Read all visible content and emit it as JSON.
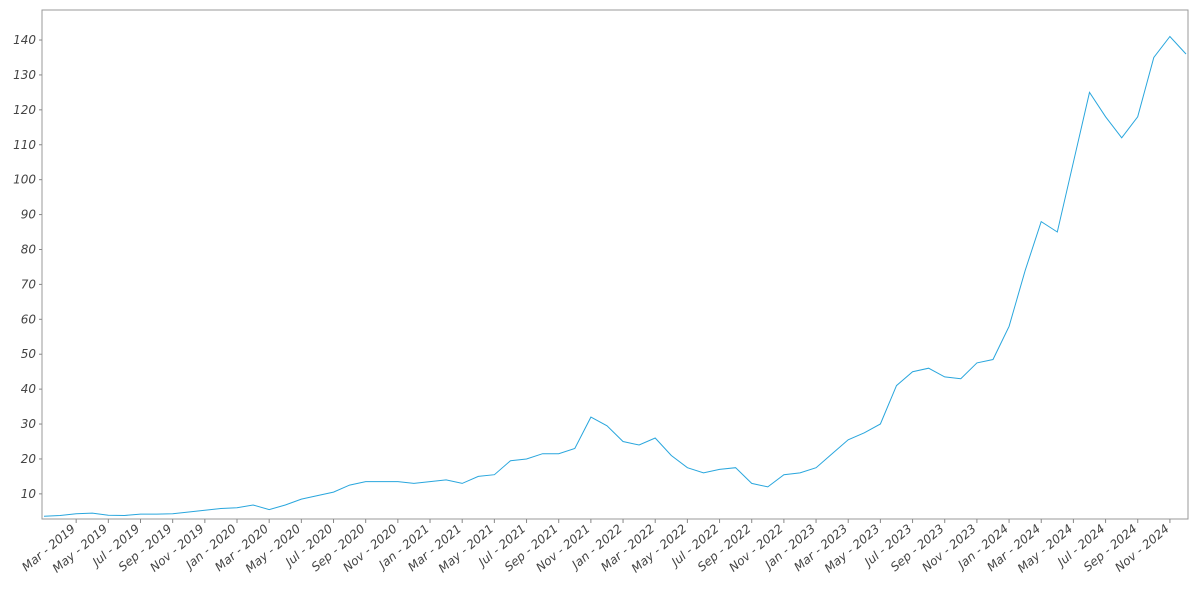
{
  "chart_data": {
    "type": "line",
    "categories": [
      null,
      null,
      "Mar - 2019",
      null,
      "May - 2019",
      null,
      "Jul - 2019",
      null,
      "Sep - 2019",
      null,
      "Nov - 2019",
      null,
      "Jan - 2020",
      null,
      "Mar - 2020",
      null,
      "May - 2020",
      null,
      "Jul - 2020",
      null,
      "Sep - 2020",
      null,
      "Nov - 2020",
      null,
      "Jan - 2021",
      null,
      "Mar - 2021",
      null,
      "May - 2021",
      null,
      "Jul - 2021",
      null,
      "Sep - 2021",
      null,
      "Nov - 2021",
      null,
      "Jan - 2022",
      null,
      "Mar - 2022",
      null,
      "May - 2022",
      null,
      "Jul - 2022",
      null,
      "Sep - 2022",
      null,
      "Nov - 2022",
      null,
      "Jan - 2023",
      null,
      "Mar - 2023",
      null,
      "May - 2023",
      null,
      "Jul - 2023",
      null,
      "Sep - 2023",
      null,
      "Nov - 2023",
      null,
      "Jan - 2024",
      null,
      "Mar - 2024",
      null,
      "May - 2024",
      null,
      "Jul - 2024",
      null,
      "Sep - 2024",
      null,
      "Nov - 2024",
      null
    ],
    "series": [
      {
        "color": "#29a6dd",
        "values": [
          3.6,
          3.8,
          4.3,
          4.5,
          3.9,
          3.8,
          4.2,
          4.2,
          4.3,
          4.8,
          5.3,
          5.8,
          6.0,
          6.8,
          5.5,
          6.8,
          8.5,
          9.5,
          10.5,
          12.5,
          13.5,
          13.5,
          13.5,
          13.0,
          13.5,
          14.0,
          13.0,
          15.0,
          15.5,
          19.5,
          20.0,
          21.5,
          21.5,
          23.0,
          32.0,
          29.5,
          25.0,
          24.0,
          26.0,
          21.0,
          17.5,
          16.0,
          17.0,
          17.5,
          13.0,
          12.0,
          15.5,
          16.0,
          17.5,
          21.5,
          25.5,
          27.5,
          30.0,
          41.0,
          45.0,
          46.0,
          43.5,
          43.0,
          47.5,
          48.5,
          58.0,
          74.0,
          88.0,
          85.0,
          105.0,
          125.0,
          118.0,
          112.0,
          118.0,
          135.0,
          141.0,
          136.0
        ]
      }
    ],
    "ylim": [
      2.8,
      148.6
    ],
    "yticks": [
      10,
      20,
      30,
      40,
      50,
      60,
      70,
      80,
      90,
      100,
      110,
      120,
      130,
      140
    ],
    "grid": false
  }
}
